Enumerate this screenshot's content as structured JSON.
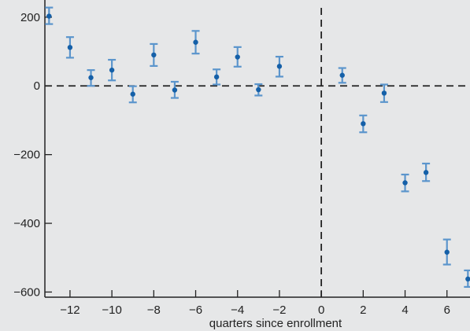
{
  "chart_data": {
    "type": "scatter",
    "title": "",
    "xlabel": "quarters since enrollment",
    "ylabel": "",
    "xlim": [
      -13.2,
      7.1
    ],
    "ylim": [
      -615,
      250
    ],
    "xticks": [
      -12,
      -10,
      -8,
      -6,
      -4,
      -2,
      0,
      2,
      4,
      6
    ],
    "yticks": [
      200,
      0,
      -200,
      -400,
      -600
    ],
    "grid": false,
    "legend": "none",
    "reference_lines": {
      "horizontal_at_y": 0,
      "vertical_at_x": 0,
      "style": "dashed"
    },
    "colors": {
      "point": "#1560a8",
      "errorbar": "#5b95cc",
      "reference_line": "#222222",
      "background": "#e6e7e8"
    },
    "series": [
      {
        "points": [
          {
            "x": -13,
            "y": 203,
            "lo": 180,
            "hi": 228
          },
          {
            "x": -12,
            "y": 112,
            "lo": 82,
            "hi": 142
          },
          {
            "x": -11,
            "y": 24,
            "lo": 0,
            "hi": 46
          },
          {
            "x": -10,
            "y": 46,
            "lo": 16,
            "hi": 76
          },
          {
            "x": -9,
            "y": -24,
            "lo": -48,
            "hi": -1
          },
          {
            "x": -8,
            "y": 90,
            "lo": 58,
            "hi": 122
          },
          {
            "x": -7,
            "y": -12,
            "lo": -35,
            "hi": 12
          },
          {
            "x": -6,
            "y": 127,
            "lo": 94,
            "hi": 160
          },
          {
            "x": -5,
            "y": 26,
            "lo": 4,
            "hi": 48
          },
          {
            "x": -4,
            "y": 84,
            "lo": 56,
            "hi": 113
          },
          {
            "x": -3,
            "y": -11,
            "lo": -28,
            "hi": 5
          },
          {
            "x": -2,
            "y": 57,
            "lo": 27,
            "hi": 85
          },
          {
            "x": 1,
            "y": 31,
            "lo": 9,
            "hi": 52
          },
          {
            "x": 2,
            "y": -110,
            "lo": -135,
            "hi": -86
          },
          {
            "x": 3,
            "y": -21,
            "lo": -47,
            "hi": 4
          },
          {
            "x": 4,
            "y": -282,
            "lo": -307,
            "hi": -258
          },
          {
            "x": 5,
            "y": -252,
            "lo": -277,
            "hi": -226
          },
          {
            "x": 6,
            "y": -484,
            "lo": -520,
            "hi": -447
          },
          {
            "x": 7,
            "y": -562,
            "lo": -585,
            "hi": -537
          }
        ]
      }
    ]
  }
}
